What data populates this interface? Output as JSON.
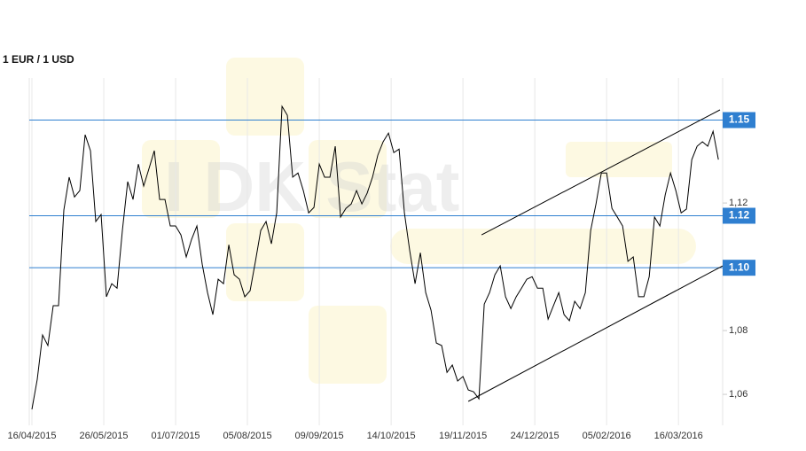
{
  "chart_data": {
    "type": "line",
    "title": "1 EUR / 1 USD",
    "watermark": "I DK Stat",
    "color": "#000000",
    "values": [
      1.0553,
      1.0647,
      1.0786,
      1.0753,
      1.0878,
      1.0878,
      1.1178,
      1.1281,
      1.1219,
      1.1239,
      1.1414,
      1.1364,
      1.1142,
      1.1164,
      1.0906,
      1.0947,
      1.0933,
      1.1114,
      1.1267,
      1.1211,
      1.1322,
      1.1253,
      1.1308,
      1.1364,
      1.1211,
      1.1211,
      1.1128,
      1.1128,
      1.11,
      1.1031,
      1.1086,
      1.1128,
      1.1008,
      1.0919,
      1.085,
      1.0961,
      1.0947,
      1.1069,
      1.0975,
      1.0961,
      1.0906,
      1.0925,
      1.1017,
      1.1114,
      1.1142,
      1.1072,
      1.1169,
      1.1503,
      1.1475,
      1.1281,
      1.1294,
      1.1239,
      1.1169,
      1.1186,
      1.1322,
      1.1281,
      1.1281,
      1.1378,
      1.1156,
      1.1183,
      1.1197,
      1.1239,
      1.1197,
      1.1231,
      1.1281,
      1.135,
      1.1392,
      1.1419,
      1.1358,
      1.1369,
      1.1169,
      1.105,
      1.0947,
      1.1044,
      1.0919,
      1.0864,
      1.0761,
      1.0753,
      1.0669,
      1.0692,
      1.0642,
      1.0656,
      1.0614,
      1.0608,
      1.0586,
      1.0883,
      1.0919,
      1.0975,
      1.1003,
      1.0906,
      1.0869,
      1.0906,
      1.0933,
      1.0961,
      1.0969,
      1.0933,
      1.0933,
      1.0836,
      1.0878,
      1.0919,
      1.085,
      1.0831,
      1.0892,
      1.0869,
      1.0919,
      1.1114,
      1.1197,
      1.1294,
      1.1294,
      1.1183,
      1.1156,
      1.1128,
      1.1017,
      1.1031,
      1.0906,
      1.0906,
      1.0969,
      1.1156,
      1.1128,
      1.1225,
      1.1294,
      1.1239,
      1.1169,
      1.1181,
      1.1336,
      1.1378,
      1.1392,
      1.1378,
      1.1425,
      1.1336
    ],
    "xlim": [
      0,
      129.8
    ],
    "ylim": [
      1.0503,
      1.1592
    ],
    "xticks": [
      {
        "value": 0,
        "label": "16/04/2015"
      },
      {
        "value": 13.5,
        "label": "26/05/2015"
      },
      {
        "value": 27,
        "label": "01/07/2015"
      },
      {
        "value": 40.5,
        "label": "05/08/2015"
      },
      {
        "value": 54,
        "label": "09/09/2015"
      },
      {
        "value": 67.5,
        "label": "14/10/2015"
      },
      {
        "value": 81,
        "label": "19/11/2015"
      },
      {
        "value": 94.5,
        "label": "24/12/2015"
      },
      {
        "value": 108,
        "label": "05/02/2016"
      },
      {
        "value": 121.5,
        "label": "16/03/2016"
      }
    ],
    "yticks": [
      {
        "value": 1.06,
        "label": "1,06"
      },
      {
        "value": 1.08,
        "label": "1,08"
      },
      {
        "value": 1.12,
        "label": "1,12"
      }
    ],
    "reference_lines": [
      {
        "value": 1.146,
        "label": "1.15"
      },
      {
        "value": 1.116,
        "label": "1.12"
      },
      {
        "value": 1.0997,
        "label": "1.10"
      }
    ],
    "reference_color": "#2f7fd0",
    "trendlines": [
      {
        "x": [
          84.5,
          129.3
        ],
        "values": [
          1.11,
          1.1492
        ]
      },
      {
        "x": [
          82,
          129.8
        ],
        "values": [
          1.0578,
          1.1003
        ]
      }
    ]
  }
}
